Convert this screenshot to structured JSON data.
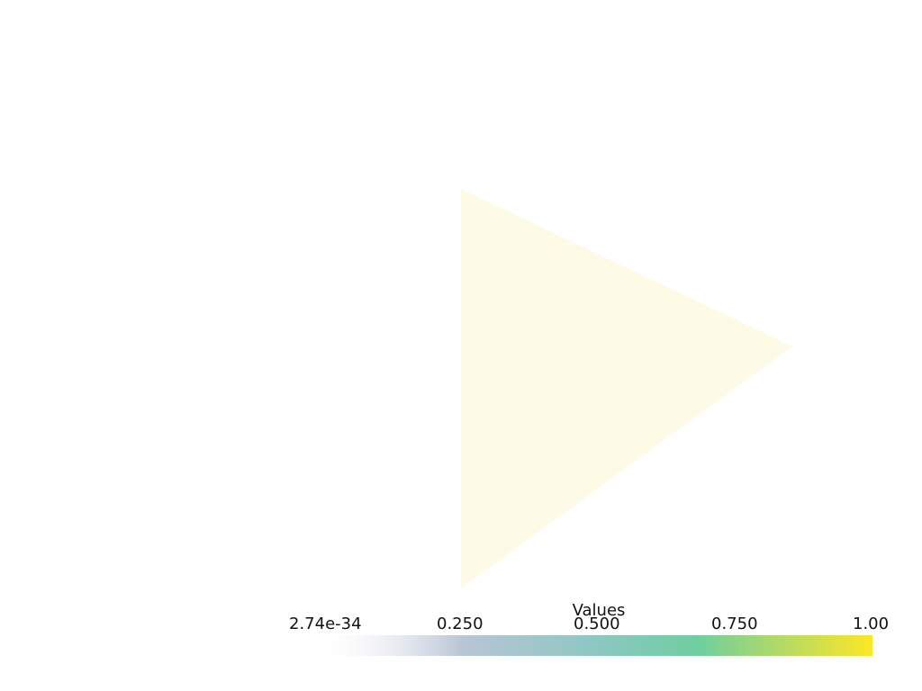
{
  "scene": {
    "shape": "triangle",
    "fill_color": "#fdfbe6"
  },
  "scalar_bar": {
    "title": "Values",
    "colormap": "viridis",
    "range": [
      2.74e-34,
      1.0
    ],
    "tick_labels": [
      "2.74e-34",
      "0.250",
      "0.500",
      "0.750",
      "1.00"
    ],
    "colors": {
      "low": "#f3f0f5",
      "mid_low": "#b8c6d6",
      "mid": "#8cc7c2",
      "mid_high": "#6fcea0",
      "high": "#fde725"
    }
  }
}
